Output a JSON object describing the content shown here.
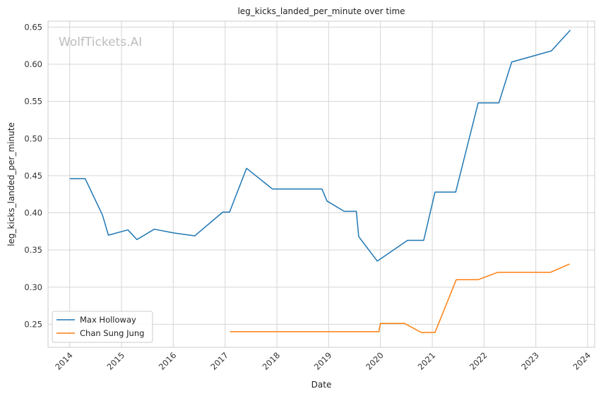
{
  "chart_data": {
    "type": "line",
    "title": "leg_kicks_landed_per_minute over time",
    "xlabel": "Date",
    "ylabel": "leg_kicks_landed_per_minute",
    "watermark": "WolfTickets.AI",
    "grid": true,
    "legend_position": "lower-left",
    "x_axis_type": "date",
    "xlim": [
      "2013-08-01",
      "2024-02-20"
    ],
    "ylim": [
      0.219,
      0.658
    ],
    "x_ticks": [
      "2014",
      "2015",
      "2016",
      "2017",
      "2018",
      "2019",
      "2020",
      "2021",
      "2022",
      "2023",
      "2024"
    ],
    "y_ticks": [
      "0.25",
      "0.30",
      "0.35",
      "0.40",
      "0.45",
      "0.50",
      "0.55",
      "0.60",
      "0.65"
    ],
    "series": [
      {
        "name": "Max Holloway",
        "color": "#1f77b4",
        "points": [
          [
            "2014-01-01",
            0.446
          ],
          [
            "2014-04-20",
            0.446
          ],
          [
            "2014-08-20",
            0.397
          ],
          [
            "2014-10-01",
            0.37
          ],
          [
            "2015-02-15",
            0.377
          ],
          [
            "2015-04-20",
            0.364
          ],
          [
            "2015-08-20",
            0.378
          ],
          [
            "2016-01-01",
            0.373
          ],
          [
            "2016-06-01",
            0.369
          ],
          [
            "2016-12-15",
            0.401
          ],
          [
            "2017-02-01",
            0.401
          ],
          [
            "2017-06-01",
            0.46
          ],
          [
            "2017-12-01",
            0.432
          ],
          [
            "2018-11-15",
            0.432
          ],
          [
            "2018-12-20",
            0.416
          ],
          [
            "2019-04-20",
            0.402
          ],
          [
            "2019-07-15",
            0.402
          ],
          [
            "2019-08-01",
            0.368
          ],
          [
            "2019-12-10",
            0.335
          ],
          [
            "2020-07-10",
            0.363
          ],
          [
            "2020-11-01",
            0.363
          ],
          [
            "2021-01-20",
            0.428
          ],
          [
            "2021-06-15",
            0.428
          ],
          [
            "2021-11-20",
            0.548
          ],
          [
            "2022-04-15",
            0.548
          ],
          [
            "2022-07-15",
            0.603
          ],
          [
            "2023-04-20",
            0.618
          ],
          [
            "2023-09-01",
            0.646
          ]
        ]
      },
      {
        "name": "Chan Sung Jung",
        "color": "#ff7f0e",
        "points": [
          [
            "2017-02-04",
            0.24
          ],
          [
            "2019-06-08",
            0.24
          ],
          [
            "2019-12-21",
            0.24
          ],
          [
            "2020-01-01",
            0.251
          ],
          [
            "2020-06-20",
            0.251
          ],
          [
            "2020-10-15",
            0.239
          ],
          [
            "2021-01-20",
            0.239
          ],
          [
            "2021-06-19",
            0.31
          ],
          [
            "2021-11-20",
            0.31
          ],
          [
            "2022-04-09",
            0.32
          ],
          [
            "2023-04-15",
            0.32
          ],
          [
            "2023-08-26",
            0.331
          ]
        ]
      }
    ]
  }
}
